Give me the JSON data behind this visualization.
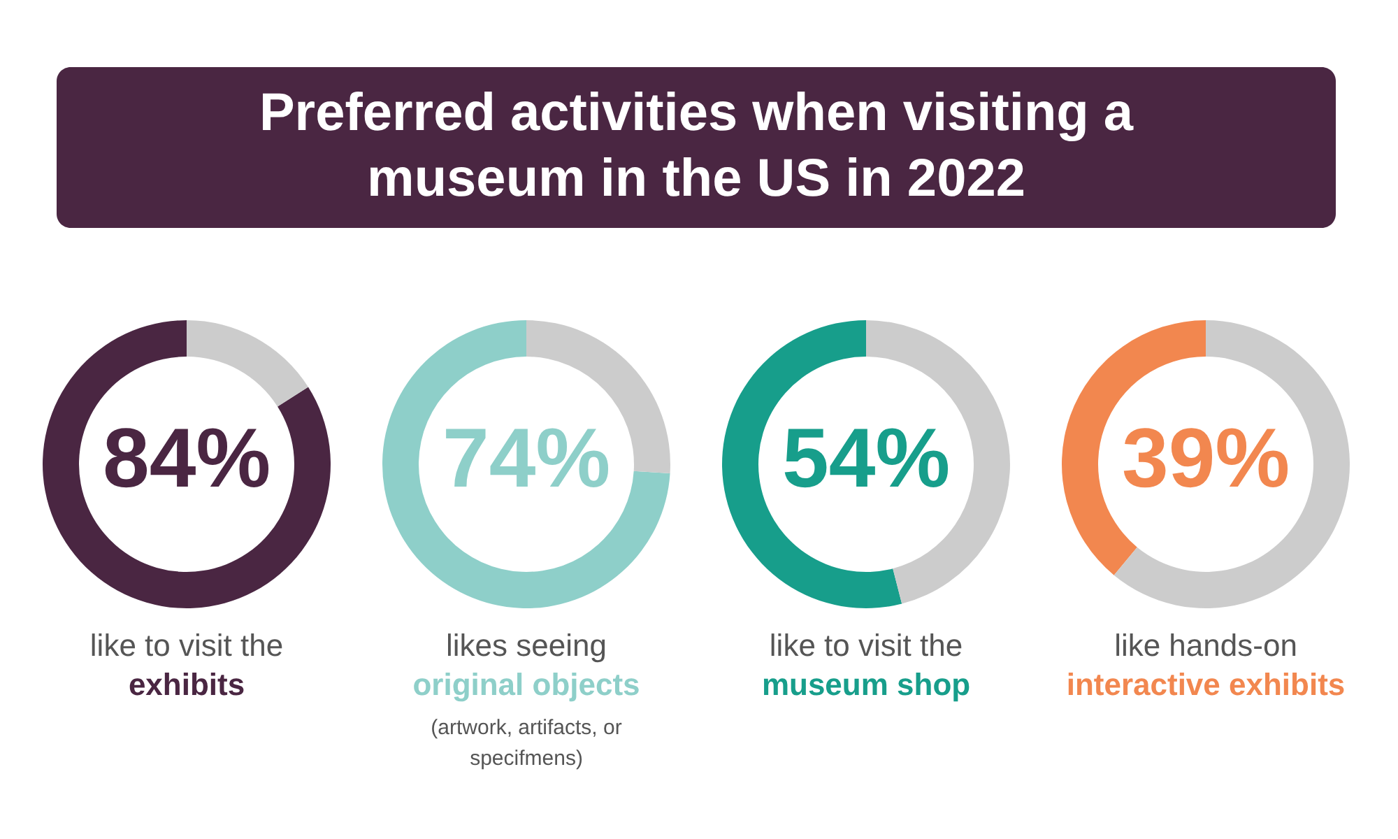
{
  "chart_data": [
    {
      "type": "other",
      "title": "Preferred activities when visiting a museum in the US in 2022",
      "color": "#4a2642"
    },
    {
      "type": "donut",
      "categories": [
        null,
        null
      ],
      "values": [
        84,
        16
      ],
      "colors": [
        "#4a2642",
        "#cccccc"
      ],
      "value_labels": [
        "84%",
        null
      ],
      "annotations": [
        "like to visit the",
        "exhibits"
      ]
    },
    {
      "type": "donut",
      "categories": [
        null,
        null
      ],
      "values": [
        74,
        26
      ],
      "colors": [
        "#8ecfc9",
        "#cccccc"
      ],
      "value_labels": [
        "74%",
        null
      ],
      "annotations": [
        "likes seeing",
        "original objects",
        "(artwork, artifacts, or specifmens)"
      ]
    },
    {
      "type": "donut",
      "categories": [
        null,
        null
      ],
      "values": [
        54,
        46
      ],
      "colors": [
        "#179e8b",
        "#cccccc"
      ],
      "value_labels": [
        "54%",
        null
      ],
      "annotations": [
        "like to visit the",
        "museum shop"
      ]
    },
    {
      "type": "donut",
      "categories": [
        null,
        null
      ],
      "values": [
        39,
        61
      ],
      "colors": [
        "#f2874f",
        "#cccccc"
      ],
      "value_labels": [
        "39%",
        null
      ],
      "annotations": [
        "like hands-on",
        "interactive exhibits"
      ]
    }
  ]
}
